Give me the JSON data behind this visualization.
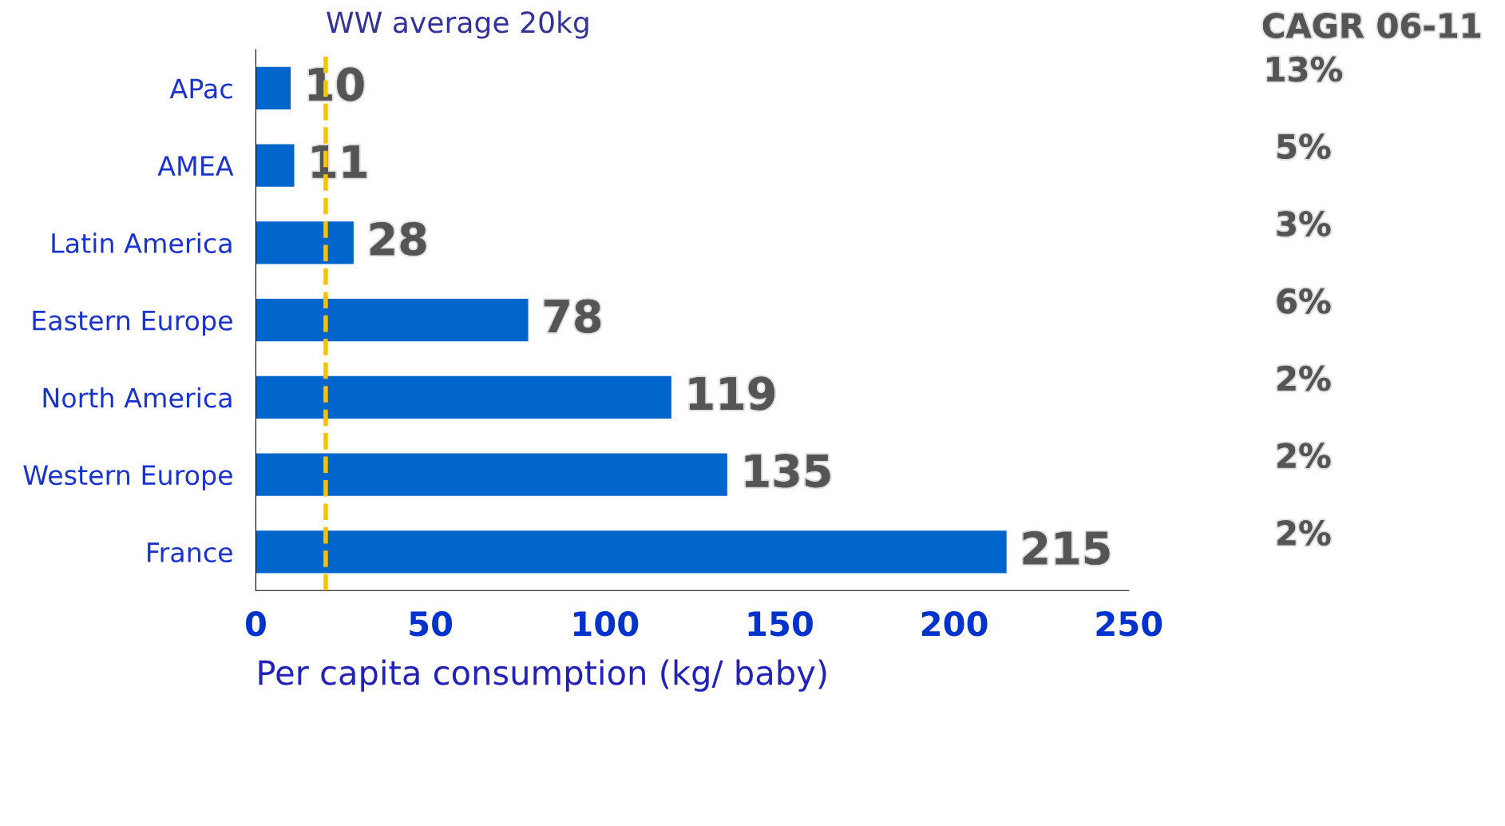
{
  "chart_data": {
    "type": "bar",
    "orientation": "horizontal",
    "xlabel": "Per capita consumption (kg/ baby)",
    "categories": [
      "APac",
      "AMEA",
      "Latin America",
      "Eastern Europe",
      "North America",
      "Western Europe",
      "France"
    ],
    "values": [
      10,
      11,
      28,
      78,
      119,
      135,
      215
    ],
    "color": "#0066cc",
    "data_labels": true,
    "xlim": [
      0,
      250
    ],
    "xticks": [
      0,
      50,
      100,
      150,
      200,
      250
    ],
    "grid": false,
    "legend": false,
    "ref_lines": [
      {
        "axis": "x",
        "value": 20,
        "label": "WW average 20kg",
        "color": "#ffc000",
        "line_style": "dashed"
      }
    ],
    "annotations": [
      "CAGR 06-11",
      "13%",
      "5%",
      "3%",
      "6%",
      "2%",
      "2%",
      "2%"
    ]
  }
}
